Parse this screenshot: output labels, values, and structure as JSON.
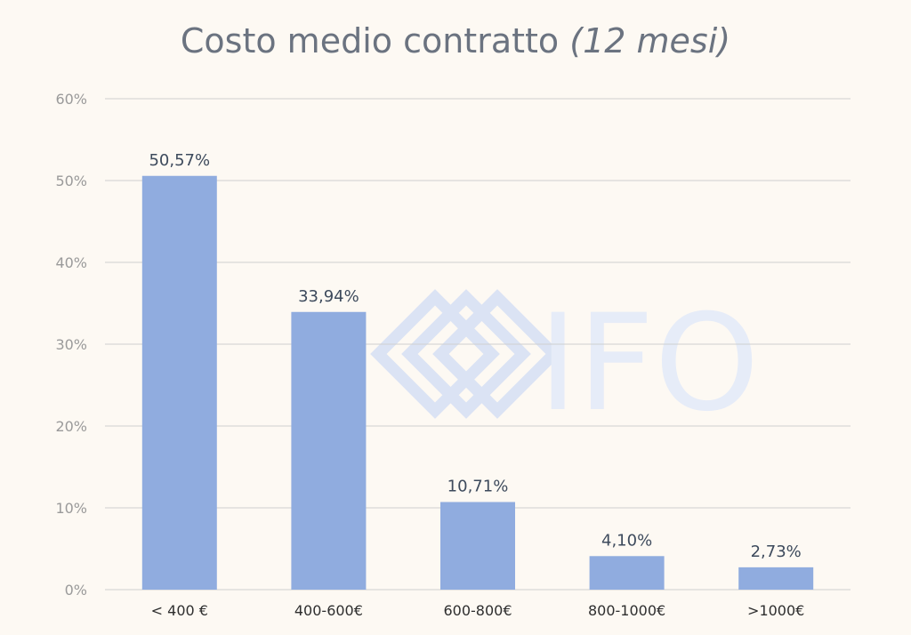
{
  "chart_data": {
    "type": "bar",
    "title": "Costo medio contratto",
    "title_suffix": "(12 mesi)",
    "categories": [
      "< 400 €",
      "400-600€",
      "600-800€",
      "800-1000€",
      ">1000€"
    ],
    "values": [
      50.57,
      33.94,
      10.71,
      4.1,
      2.73
    ],
    "data_labels": [
      "50,57%",
      "33,94%",
      "10,71%",
      "4,10%",
      "2,73%"
    ],
    "y_ticks": [
      "0%",
      "10%",
      "20%",
      "30%",
      "40%",
      "50%",
      "60%"
    ],
    "ylim": [
      0,
      60
    ],
    "grid": true,
    "bar_color": "#90acdf",
    "watermark": "IFO"
  }
}
